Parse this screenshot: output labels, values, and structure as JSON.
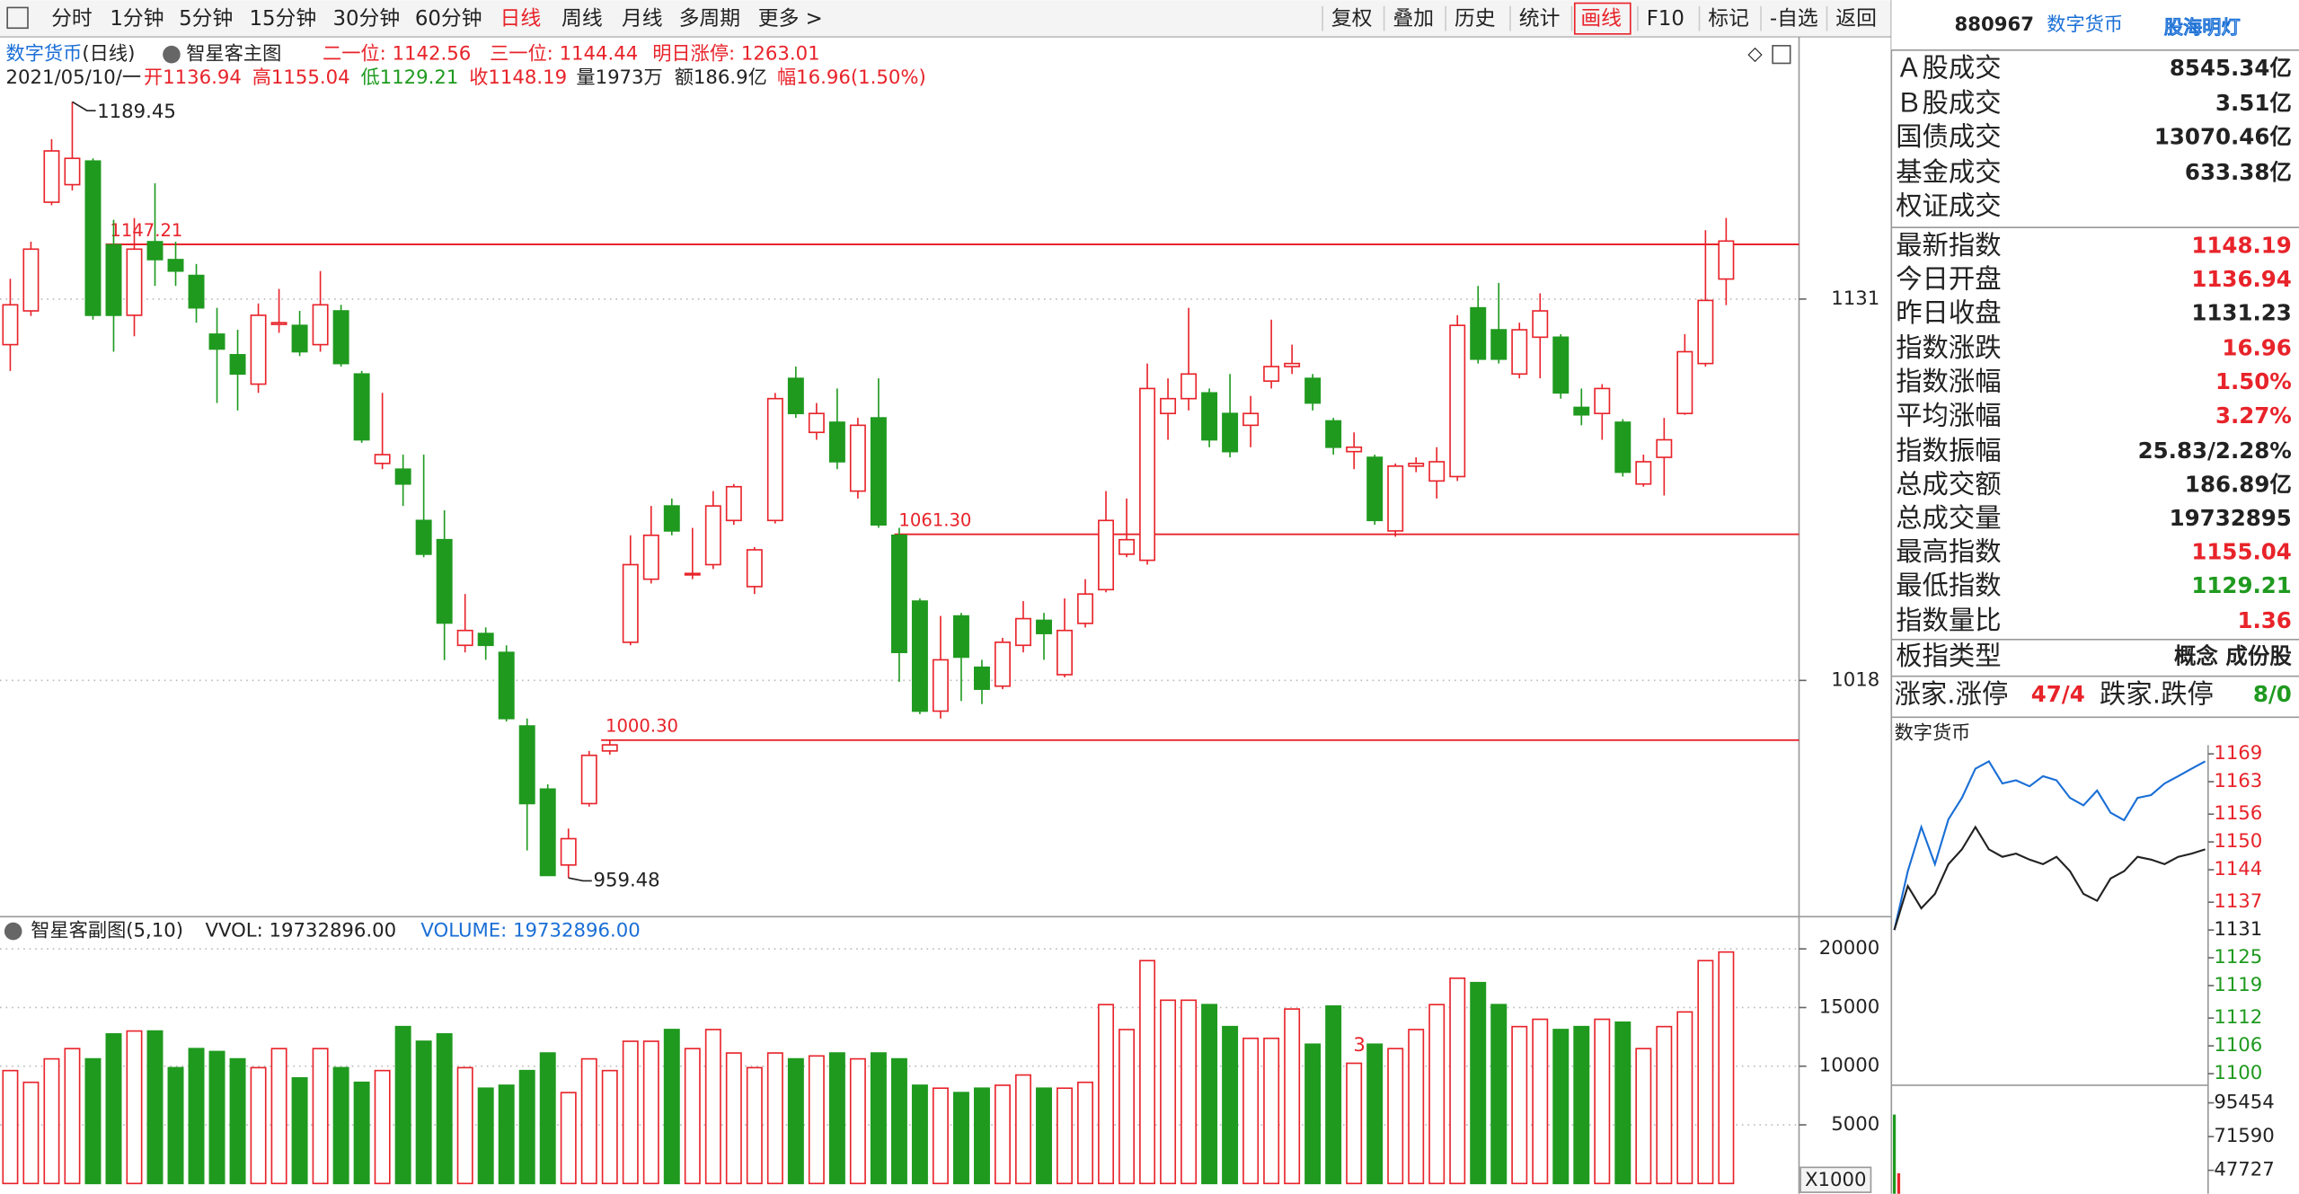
{
  "toolbar": {
    "left": [
      "分时",
      "1分钟",
      "5分钟",
      "15分钟",
      "30分钟",
      "60分钟",
      "日线",
      "周线",
      "月线",
      "多周期",
      "更多 >"
    ],
    "active": "日线",
    "right": [
      "复权",
      "叠加",
      "历史",
      "统计",
      "画线",
      "F10",
      "标记",
      "-自选",
      "返回"
    ]
  },
  "main_header": {
    "name": "数字货币",
    "period": "(日线)",
    "indicator": "智星客主图",
    "info": [
      {
        "text": "二一位: 1142.56",
        "color": "#e8232a"
      },
      {
        "text": "三一位: 1144.44",
        "color": "#e8232a"
      },
      {
        "text": "明日涨停: 1263.01",
        "color": "#e8232a"
      }
    ],
    "date": "2021/05/10/一",
    "quote": [
      {
        "text": "开1136.94",
        "color": "#e8232a"
      },
      {
        "text": "高1155.04",
        "color": "#e8232a"
      },
      {
        "text": "低1129.21",
        "color": "#1f9a1f"
      },
      {
        "text": "收1148.19",
        "color": "#e8232a"
      },
      {
        "text": "量1973万",
        "color": "#222222"
      },
      {
        "text": "额186.9亿",
        "color": "#222222"
      },
      {
        "text": "幅16.96(1.50%)",
        "color": "#e8232a"
      }
    ]
  },
  "sub_header": {
    "indicator": "智星客副图(5,10)",
    "vvol": "VVOL: 19732896.00",
    "volume": "VOLUME: 19732896.00",
    "unit": "X1000",
    "mark": "3"
  },
  "panel": {
    "code": "880967",
    "name": "数字货币",
    "brand": "股海明灯",
    "rows": [
      {
        "label": "Ａ股成交",
        "value": "8545.34亿",
        "color": "#222222"
      },
      {
        "label": "Ｂ股成交",
        "value": "3.51亿",
        "color": "#222222"
      },
      {
        "label": "国债成交",
        "value": "13070.46亿",
        "color": "#222222"
      },
      {
        "label": "基金成交",
        "value": "633.38亿",
        "color": "#222222"
      },
      {
        "label": "权证成交"
      },
      {
        "label": "最新指数",
        "value": "1148.19",
        "color": "#e8232a"
      },
      {
        "label": "今日开盘",
        "value": "1136.94",
        "color": "#e8232a"
      },
      {
        "label": "昨日收盘",
        "value": "1131.23",
        "color": "#222222"
      },
      {
        "label": "指数涨跌",
        "value": "16.96",
        "color": "#e8232a"
      },
      {
        "label": "指数涨幅",
        "value": "1.50%",
        "color": "#e8232a"
      },
      {
        "label": "平均涨幅",
        "value": "3.27%",
        "color": "#e8232a"
      },
      {
        "label": "指数振幅",
        "value": "25.83/2.28%",
        "color": "#222222"
      },
      {
        "label": "总成交额",
        "value": "186.89亿",
        "color": "#222222"
      },
      {
        "label": "总成交量",
        "value": "19732895",
        "color": "#222222"
      },
      {
        "label": "最高指数",
        "value": "1155.04",
        "color": "#e8232a"
      },
      {
        "label": "最低指数",
        "value": "1129.21",
        "color": "#1f9a1f"
      },
      {
        "label": "指数量比",
        "value": "1.36",
        "color": "#e8232a"
      },
      {
        "label": "板指类型",
        "value": "概念 成份股",
        "color": "#222222"
      }
    ],
    "breadth": [
      {
        "label": "涨家.涨停",
        "value": "47/4",
        "color": "#e8232a"
      },
      {
        "label": "跌家.跌停",
        "value": "8/0",
        "color": "#1f9a1f"
      }
    ],
    "mini_title": "数字货币"
  },
  "chart_data": [
    {
      "type": "candlestick",
      "up_color": "#e8232a",
      "down_color": "#1f9a1f",
      "open": [
        1117.5,
        1127.5,
        1159.7,
        1164.9,
        1171.9,
        1147.1,
        1126.2,
        1148,
        1142.7,
        1138,
        1120.6,
        1114.5,
        1105.8,
        1123.5,
        1123.2,
        1117.5,
        1127.5,
        1108.8,
        1082.3,
        1080.6,
        1065.4,
        1059.7,
        1028.4,
        1031.9,
        1026.3,
        1004.5,
        985.8,
        963.3,
        981.5,
        997.1,
        1029.3,
        1048,
        1069.7,
        1049.3,
        1052.3,
        1065.4,
        1045.8,
        1065.4,
        1107.5,
        1091.5,
        1094.5,
        1074.1,
        1095.8,
        1061,
        1041.5,
        1008.9,
        1037.1,
        1021.9,
        1016.3,
        1028.4,
        1035.8,
        1019.7,
        1034.9,
        1044.9,
        1055.4,
        1053.6,
        1097.1,
        1101.5,
        1103.2,
        1097.1,
        1093.6,
        1106.7,
        1111,
        1107.5,
        1094.9,
        1085.8,
        1084.1,
        1062.3,
        1081.5,
        1077.1,
        1078.4,
        1128.4,
        1121.9,
        1108.8,
        1119.7,
        1119.7,
        1098.9,
        1097.1,
        1094.5,
        1076.2,
        1084.1,
        1097.1,
        1111.9,
        1136.94
      ],
      "high": [
        1137,
        1148,
        1178.4,
        1189.45,
        1172.7,
        1154.5,
        1155,
        1165.3,
        1148,
        1141.4,
        1128.4,
        1121.9,
        1129.7,
        1134,
        1127.5,
        1139.3,
        1129.3,
        1109.7,
        1103.2,
        1084.9,
        1084.9,
        1068.4,
        1043.6,
        1033.7,
        1028.4,
        1006.7,
        987.2,
        974.1,
        997.1,
        1000.3,
        1061,
        1069.7,
        1071.9,
        1063.2,
        1074.1,
        1076.2,
        1057.5,
        1103.2,
        1111,
        1100.2,
        1104.5,
        1095.8,
        1107.5,
        1063.2,
        1042.3,
        1037.1,
        1038,
        1024.1,
        1030.6,
        1041.5,
        1038,
        1042.3,
        1048,
        1074.1,
        1071.9,
        1111.9,
        1107.5,
        1128.4,
        1104.5,
        1108.8,
        1102.3,
        1124.9,
        1117.5,
        1108.8,
        1095.8,
        1091.5,
        1084.9,
        1082.3,
        1084.1,
        1087.1,
        1126.2,
        1134.9,
        1135.8,
        1124,
        1132.7,
        1120.6,
        1104.5,
        1105.8,
        1095.4,
        1084.9,
        1095.8,
        1120.6,
        1151.4,
        1155.04
      ],
      "low": [
        1109.7,
        1126,
        1158.8,
        1163.2,
        1124.9,
        1115.4,
        1120,
        1134.9,
        1134.9,
        1124,
        1100.2,
        1098,
        1103.2,
        1121,
        1114.1,
        1115.4,
        1111,
        1088.4,
        1080.6,
        1069.7,
        1054.5,
        1024,
        1026.3,
        1024.1,
        1005.8,
        967.6,
        962,
        959.48,
        980.6,
        996,
        1028.4,
        1046.7,
        1061,
        1048,
        1051,
        1064.1,
        1043.6,
        1064.5,
        1095.8,
        1089.3,
        1080.6,
        1071.9,
        1063.2,
        1017.6,
        1008,
        1006.7,
        1011.9,
        1011,
        1015.4,
        1026.3,
        1024.1,
        1018.9,
        1033.7,
        1044.1,
        1054.5,
        1052.3,
        1089.3,
        1098,
        1087.1,
        1084.1,
        1087.1,
        1104.5,
        1108.8,
        1098,
        1084.9,
        1080.6,
        1064.1,
        1060.6,
        1079.7,
        1071.9,
        1077.1,
        1111.9,
        1111.9,
        1107.5,
        1107.5,
        1101.5,
        1093.6,
        1089.3,
        1078.4,
        1075.4,
        1072.8,
        1096.7,
        1111,
        1129.21
      ],
      "close": [
        1129.3,
        1145.8,
        1174.9,
        1172.7,
        1126.2,
        1126.2,
        1145.8,
        1142.7,
        1139.3,
        1128.4,
        1116.2,
        1108.8,
        1126.2,
        1124,
        1115.4,
        1129.3,
        1111.9,
        1089.3,
        1084.9,
        1076.2,
        1055.4,
        1035,
        1032.8,
        1028.4,
        1006.7,
        981.5,
        960.2,
        971.1,
        995.8,
        998.9,
        1052.3,
        1061,
        1062.3,
        1049.7,
        1069.7,
        1075.4,
        1056.7,
        1101.5,
        1097.1,
        1097.1,
        1082.8,
        1093.6,
        1064.1,
        1026.3,
        1008.9,
        1024.1,
        1024.9,
        1015.4,
        1029.3,
        1036.3,
        1031.9,
        1032.8,
        1043.6,
        1065.4,
        1059.7,
        1104.5,
        1101.5,
        1108.8,
        1089.3,
        1085.8,
        1097.1,
        1111,
        1111.9,
        1100.2,
        1087.1,
        1087.1,
        1065.4,
        1081.5,
        1082.3,
        1082.8,
        1123.2,
        1113.2,
        1113.2,
        1121.9,
        1127.5,
        1103.2,
        1096.7,
        1104.5,
        1079.7,
        1082.8,
        1089.3,
        1115.4,
        1130.6,
        1148.19
      ],
      "levels": [
        {
          "value": 1147.21,
          "label": "1147.21"
        },
        {
          "value": 1061.3,
          "label": "1061.30"
        },
        {
          "value": 1000.3,
          "label": "1000.30"
        }
      ],
      "level_color": "#e8232a",
      "ylim": [
        948,
        1200
      ],
      "yticks": [
        1018,
        1131
      ],
      "grid": true
    },
    {
      "type": "bar",
      "values": [
        9625,
        8625,
        10625,
        11500,
        10625,
        12750,
        13000,
        13000,
        9875,
        11500,
        11250,
        10625,
        9875,
        11500,
        9000,
        11500,
        9875,
        8625,
        9625,
        13375,
        12125,
        12750,
        9875,
        8125,
        8375,
        9625,
        11125,
        7750,
        10625,
        9625,
        12125,
        12125,
        13125,
        11500,
        13125,
        11125,
        9875,
        11125,
        10625,
        10875,
        11125,
        10625,
        11125,
        10625,
        8375,
        8125,
        7750,
        8125,
        8375,
        9250,
        8125,
        8125,
        8625,
        15250,
        13125,
        19000,
        15625,
        15625,
        15250,
        13375,
        12375,
        12375,
        14875,
        11875,
        15125,
        10250,
        11875,
        11500,
        13125,
        15250,
        17500,
        17125,
        15250,
        13375,
        14000,
        13125,
        13375,
        14000,
        13750,
        11500,
        13375,
        14625,
        19000,
        19732.896
      ],
      "ylim": [
        0,
        22375
      ],
      "yticks": [
        5000,
        10000,
        15000,
        20000
      ],
      "grid": true
    },
    {
      "type": "line",
      "series": [
        {
          "color": "#1a6fd6",
          "values": [
            1131,
            1143.7,
            1153.2,
            1145.2,
            1154.9,
            1159.5,
            1165.8,
            1167.4,
            1162.6,
            1163.3,
            1162,
            1164.2,
            1163.3,
            1159.5,
            1157.9,
            1161.1,
            1156.3,
            1154.7,
            1159.5,
            1160.1,
            1162.6,
            1164.2,
            1165.8,
            1167.4
          ]
        },
        {
          "color": "#222222",
          "values": [
            1131,
            1140.5,
            1135.7,
            1138.8,
            1145.2,
            1148.4,
            1153.2,
            1148.4,
            1146.8,
            1147.5,
            1146.2,
            1145.2,
            1146.8,
            1143.7,
            1138.8,
            1137.3,
            1142.1,
            1143.7,
            1146.8,
            1146.2,
            1145.2,
            1146.8,
            1147.5,
            1148.4
          ]
        }
      ],
      "ylim": [
        1097.5,
        1170.9
      ],
      "yticks": [
        1169,
        1163,
        1156,
        1150,
        1144,
        1137,
        1131,
        1125,
        1119,
        1112,
        1106,
        1100
      ],
      "tick_colors": [
        "#e8232a",
        "#e8232a",
        "#e8232a",
        "#e8232a",
        "#e8232a",
        "#e8232a",
        "#222222",
        "#1f9a1f",
        "#1f9a1f",
        "#1f9a1f",
        "#1f9a1f",
        "#1f9a1f"
      ]
    },
    {
      "type": "bar",
      "values": [
        87150,
        45650
      ],
      "colors": [
        "#1f9a1f",
        "#e8232a"
      ],
      "ylim": [
        31125,
        107900
      ],
      "yticks": [
        95454,
        71590,
        47727
      ]
    }
  ]
}
